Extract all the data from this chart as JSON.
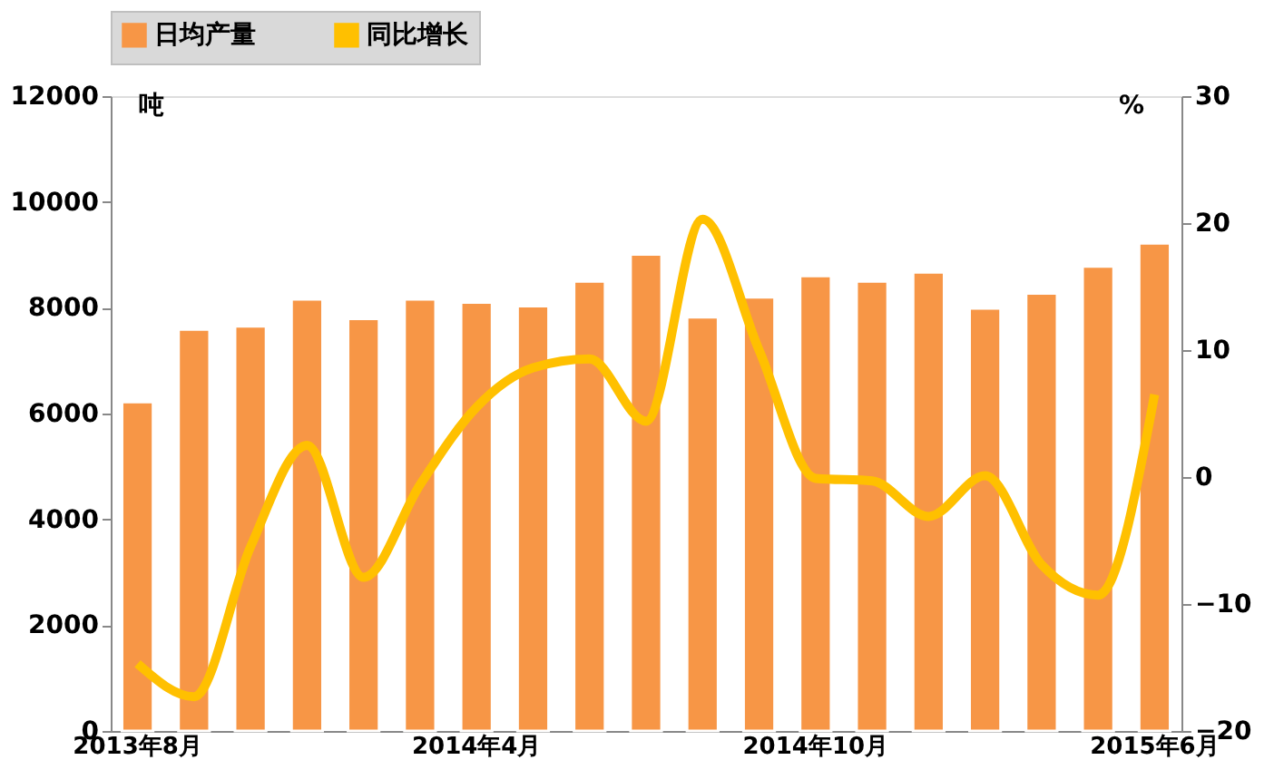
{
  "chart_data": {
    "type": "bar",
    "ylabel": "吨",
    "y2label": "%",
    "categories": [
      "2013年8月",
      null,
      null,
      null,
      null,
      null,
      "2014年4月",
      null,
      null,
      null,
      null,
      null,
      "2014年10月",
      null,
      null,
      null,
      null,
      null,
      "2015年6月"
    ],
    "series": [
      {
        "name": "日均产量",
        "color": "#f79646",
        "values": [
          6220,
          7590,
          7650,
          8160,
          7790,
          8160,
          8100,
          8030,
          8500,
          9010,
          7820,
          8200,
          8600,
          8500,
          8670,
          7990,
          8270,
          8780,
          9220
        ]
      },
      {
        "name": "同比增长",
        "type": "line",
        "axis": "y2",
        "color": "#ffc000",
        "values": [
          -14.7,
          -17.3,
          -5.5,
          2.5,
          -7.9,
          -0.6,
          5.5,
          8.6,
          9.3,
          4.4,
          20.3,
          10,
          -0.1,
          -0.3,
          -3.1,
          0.1,
          -6.9,
          -9.3,
          6.5
        ]
      }
    ],
    "ylim": [
      0,
      12000
    ],
    "yticks": [
      0,
      2000,
      4000,
      6000,
      8000,
      10000,
      12000
    ],
    "y2lim": [
      -20,
      30
    ],
    "y2ticks": [
      -20,
      -10,
      0,
      10,
      20,
      30
    ],
    "legend": "top",
    "grid": false,
    "marker": "none"
  }
}
